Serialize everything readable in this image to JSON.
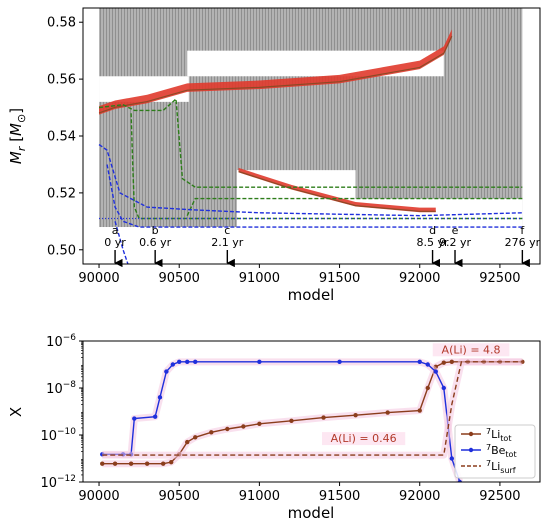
{
  "chart_data": [
    {
      "type": "area",
      "xlabel": "model",
      "ylabel": "M_r [M_⊙]",
      "ylabel_parts": {
        "main": "M",
        "sub": "r",
        "unit_open": " [",
        "unit_main": "M",
        "unit_sub": "⊙",
        "unit_close": "]"
      },
      "xlim": [
        89900,
        92750
      ],
      "ylim": [
        0.495,
        0.585
      ],
      "xticks": [
        90000,
        90500,
        91000,
        91500,
        92000,
        92500
      ],
      "xtick_labels": [
        "90000",
        "90500",
        "91000",
        "91500",
        "92000",
        "92500"
      ],
      "yticks": [
        0.5,
        0.52,
        0.54,
        0.56,
        0.58
      ],
      "ytick_labels": [
        "0.50",
        "0.52",
        "0.54",
        "0.56",
        "0.58"
      ],
      "colors": {
        "convective": "#a6a6a6",
        "burning_a": "#e03a2c",
        "burning_b": "#8c4a26",
        "green": "#2d7d1a",
        "blue": "#1f2fdc"
      },
      "convective_zone": {
        "x": [
          90000,
          92640
        ],
        "top": 0.585,
        "bottom": 0.508
      },
      "white_gaps": [
        {
          "x": [
            90000,
            90560
          ],
          "y": [
            0.552,
            0.561
          ]
        },
        {
          "x": [
            90550,
            92150
          ],
          "y": [
            0.561,
            0.57
          ]
        },
        {
          "x": [
            90860,
            91600
          ],
          "y": [
            0.518,
            0.528
          ]
        },
        {
          "x": [
            90860,
            92640
          ],
          "y": [
            0.508,
            0.518
          ]
        }
      ],
      "burning_shells": [
        {
          "x": [
            90000,
            90100,
            90300,
            90550,
            91000,
            91500,
            92000,
            92150,
            92200
          ],
          "y": [
            0.549,
            0.551,
            0.553,
            0.557,
            0.558,
            0.56,
            0.565,
            0.57,
            0.576
          ],
          "thickness": 0.0015
        },
        {
          "x": [
            90870,
            91200,
            91600,
            92000,
            92100
          ],
          "y": [
            0.528,
            0.522,
            0.516,
            0.514,
            0.514
          ],
          "thickness": 0.0008
        }
      ],
      "green_dashed_lines": [
        {
          "x": [
            90000,
            90150,
            90220,
            90400,
            90480,
            90520,
            90600,
            92640
          ],
          "y": [
            0.55,
            0.551,
            0.549,
            0.549,
            0.553,
            0.525,
            0.522,
            0.522
          ]
        },
        {
          "x": [
            90200,
            90210,
            90220,
            90250,
            92640
          ],
          "y": [
            0.548,
            0.53,
            0.515,
            0.511,
            0.511
          ]
        },
        {
          "x": [
            90550,
            90600,
            92640
          ],
          "y": [
            0.512,
            0.518,
            0.518
          ]
        }
      ],
      "blue_dashed_lines": [
        {
          "x": [
            90000,
            90050,
            90130,
            90300,
            90600,
            91000,
            92000,
            92640
          ],
          "y": [
            0.537,
            0.535,
            0.52,
            0.515,
            0.514,
            0.513,
            0.512,
            0.513
          ]
        },
        {
          "x": [
            90050,
            90100,
            90150,
            90200,
            90250,
            92640
          ],
          "y": [
            0.53,
            0.515,
            0.51,
            0.509,
            0.508,
            0.508
          ]
        },
        {
          "x": [
            90100,
            90150,
            90180
          ],
          "y": [
            0.51,
            0.5,
            0.495
          ]
        }
      ],
      "blue_dotted_line": {
        "x": [
          90000,
          92640
        ],
        "y": [
          0.511,
          0.511
        ]
      },
      "arrows": [
        {
          "model": 90100,
          "letter": "a",
          "time": "0 yr"
        },
        {
          "model": 90350,
          "letter": "b",
          "time": "0.6 yr"
        },
        {
          "model": 90800,
          "letter": "c",
          "time": "2.1 yr"
        },
        {
          "model": 92080,
          "letter": "d",
          "time": "8.5 yr"
        },
        {
          "model": 92220,
          "letter": "e",
          "time": "9.2 yr"
        },
        {
          "model": 92640,
          "letter": "f",
          "time": "276 yr"
        }
      ]
    },
    {
      "type": "line",
      "xlabel": "model",
      "ylabel": "X",
      "y_scale": "log",
      "xlim": [
        89900,
        92750
      ],
      "ylim": [
        1e-12,
        1e-06
      ],
      "xticks": [
        90000,
        90500,
        91000,
        91500,
        92000,
        92500
      ],
      "xtick_labels": [
        "90000",
        "90500",
        "91000",
        "91500",
        "92000",
        "92500"
      ],
      "yticks": [
        1e-12,
        1e-10,
        1e-08,
        1e-06
      ],
      "ytick_bases": [
        "10",
        "10",
        "10",
        "10"
      ],
      "ytick_exponents": [
        "−12",
        "−10",
        "−8",
        "−6"
      ],
      "series": [
        {
          "name": "7Li_tot",
          "legend_sup": "7",
          "legend_main": "Li",
          "legend_sub": "tot",
          "color": "#8b3d1c",
          "style": "line+markers",
          "x": [
            90020,
            90100,
            90200,
            90300,
            90400,
            90450,
            90500,
            90550,
            90600,
            90700,
            90800,
            90900,
            91000,
            91200,
            91400,
            91600,
            91800,
            92000,
            92050,
            92100,
            92150,
            92200,
            92300,
            92400,
            92500,
            92640
          ],
          "y": [
            6e-12,
            6e-12,
            6e-12,
            6e-12,
            6e-12,
            7e-12,
            1.5e-11,
            5e-11,
            8e-11,
            1.3e-10,
            1.8e-10,
            2.3e-10,
            3e-10,
            4e-10,
            5.5e-10,
            7e-10,
            9e-10,
            1.1e-09,
            1e-08,
            8e-08,
            1.2e-07,
            1.3e-07,
            1.3e-07,
            1.3e-07,
            1.3e-07,
            1.3e-07
          ]
        },
        {
          "name": "7Be_tot",
          "legend_sup": "7",
          "legend_main": "Be",
          "legend_sub": "tot",
          "color": "#1f2fdc",
          "style": "line+markers",
          "x": [
            90020,
            90150,
            90200,
            90220,
            90350,
            90380,
            90420,
            90460,
            90500,
            90550,
            90600,
            91000,
            91500,
            92000,
            92050,
            92100,
            92150,
            92200,
            92250
          ],
          "y": [
            1.5e-11,
            1.5e-11,
            1.5e-11,
            5e-10,
            6e-10,
            4e-09,
            5e-08,
            1e-07,
            1.3e-07,
            1.3e-07,
            1.3e-07,
            1.3e-07,
            1.3e-07,
            1.3e-07,
            1e-07,
            5e-08,
            1e-08,
            1e-11,
            1e-12
          ]
        },
        {
          "name": "7Li_surf",
          "legend_sup": "7",
          "legend_main": "Li",
          "legend_sub": "surf",
          "color": "#8b3d1c",
          "style": "dashed",
          "x": [
            90020,
            92150,
            92200,
            92260,
            92640
          ],
          "y": [
            1.4e-11,
            1.4e-11,
            2e-09,
            1.3e-07,
            1.3e-07
          ]
        }
      ],
      "annotations": [
        {
          "text": "A(Li) = 4.8",
          "x": 92320,
          "y": 3e-07
        },
        {
          "text": "A(Li) = 0.46",
          "x": 91650,
          "y": 5e-11
        }
      ],
      "legend_location": "lower-right"
    }
  ]
}
